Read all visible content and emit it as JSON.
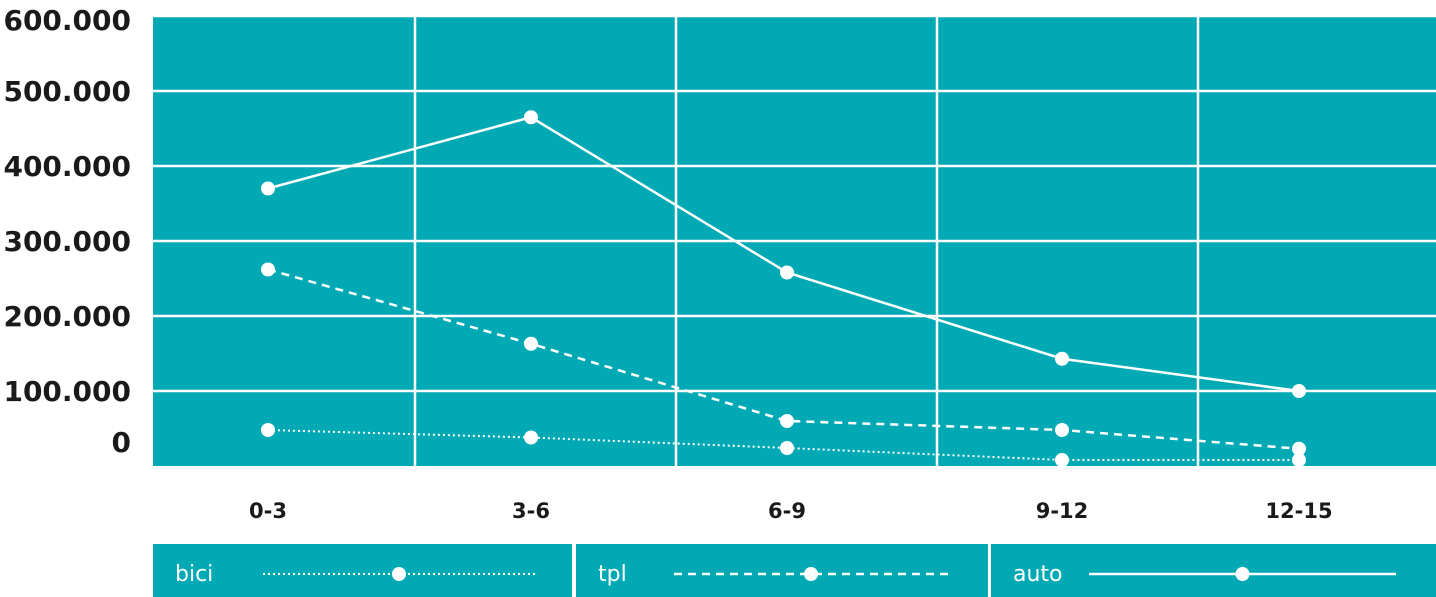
{
  "chart_data": {
    "type": "line",
    "categories": [
      "0-3",
      "3-6",
      "6-9",
      "9-12",
      "12-15"
    ],
    "y_ticks": [
      "0",
      "100.000",
      "200.000",
      "300.000",
      "400.000",
      "500.000",
      "600.000"
    ],
    "ylim": [
      0,
      600000
    ],
    "grid": true,
    "legend_position": "bottom",
    "series": [
      {
        "name": "bici",
        "values": [
          48000,
          38000,
          24000,
          8000,
          8000
        ],
        "line_style": "dotted"
      },
      {
        "name": "tpl",
        "values": [
          262000,
          163000,
          60000,
          48000,
          23000
        ],
        "line_style": "dashed"
      },
      {
        "name": "auto",
        "values": [
          370000,
          465000,
          258000,
          143000,
          100000
        ],
        "line_style": "solid"
      }
    ],
    "colors": {
      "plot_background": "#00a9b4",
      "grid": "#ffffff",
      "series": "#ffffff",
      "tick_text": "#1a1a1a"
    }
  }
}
